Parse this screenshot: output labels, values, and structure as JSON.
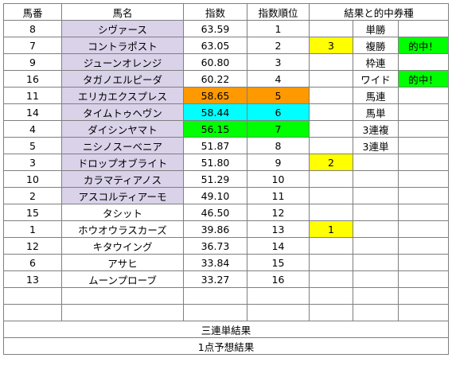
{
  "headers": [
    "馬番",
    "馬名",
    "指数",
    "指数順位",
    "結果と的中券種"
  ],
  "rows": [
    {
      "num": "8",
      "name": "シヴァース",
      "index": "63.59",
      "rank": "1",
      "res": "",
      "ticket": "単勝",
      "hit": "",
      "nameHL": "lav",
      "idxHL": "",
      "rankHL": "",
      "resHL": "",
      "hitHL": ""
    },
    {
      "num": "7",
      "name": "コントラポスト",
      "index": "63.05",
      "rank": "2",
      "res": "3",
      "ticket": "複勝",
      "hit": "的中！",
      "nameHL": "lav",
      "idxHL": "",
      "rankHL": "",
      "resHL": "yellow",
      "hitHL": "green"
    },
    {
      "num": "9",
      "name": "ジューンオレンジ",
      "index": "60.80",
      "rank": "3",
      "res": "",
      "ticket": "枠連",
      "hit": "",
      "nameHL": "lav",
      "idxHL": "",
      "rankHL": "",
      "resHL": "",
      "hitHL": ""
    },
    {
      "num": "16",
      "name": "タガノエルピーダ",
      "index": "60.22",
      "rank": "4",
      "res": "",
      "ticket": "ワイド",
      "hit": "的中！",
      "nameHL": "lav",
      "idxHL": "",
      "rankHL": "",
      "resHL": "",
      "hitHL": "green"
    },
    {
      "num": "11",
      "name": "エリカエクスプレス",
      "index": "58.65",
      "rank": "5",
      "res": "",
      "ticket": "馬連",
      "hit": "",
      "nameHL": "lav",
      "idxHL": "orange",
      "rankHL": "orange",
      "resHL": "",
      "hitHL": ""
    },
    {
      "num": "14",
      "name": "タイムトゥヘヴン",
      "index": "58.44",
      "rank": "6",
      "res": "",
      "ticket": "馬単",
      "hit": "",
      "nameHL": "lav",
      "idxHL": "cyan",
      "rankHL": "cyan",
      "resHL": "",
      "hitHL": ""
    },
    {
      "num": "4",
      "name": "ダイシンヤマト",
      "index": "56.15",
      "rank": "7",
      "res": "",
      "ticket": "3連複",
      "hit": "",
      "nameHL": "lav",
      "idxHL": "green",
      "rankHL": "green",
      "resHL": "",
      "hitHL": ""
    },
    {
      "num": "5",
      "name": "ニシノスーベニア",
      "index": "51.87",
      "rank": "8",
      "res": "",
      "ticket": "3連単",
      "hit": "",
      "nameHL": "lav",
      "idxHL": "",
      "rankHL": "",
      "resHL": "",
      "hitHL": ""
    },
    {
      "num": "3",
      "name": "ドロップオブライト",
      "index": "51.80",
      "rank": "9",
      "res": "2",
      "ticket": "",
      "hit": "",
      "nameHL": "lav",
      "idxHL": "",
      "rankHL": "",
      "resHL": "yellow",
      "hitHL": ""
    },
    {
      "num": "10",
      "name": "カラマティアノス",
      "index": "51.29",
      "rank": "10",
      "res": "",
      "ticket": "",
      "hit": "",
      "nameHL": "lav",
      "idxHL": "",
      "rankHL": "",
      "resHL": "",
      "hitHL": ""
    },
    {
      "num": "2",
      "name": "アスコルティアーモ",
      "index": "49.10",
      "rank": "11",
      "res": "",
      "ticket": "",
      "hit": "",
      "nameHL": "lav",
      "idxHL": "",
      "rankHL": "",
      "resHL": "",
      "hitHL": ""
    },
    {
      "num": "15",
      "name": "タシット",
      "index": "46.50",
      "rank": "12",
      "res": "",
      "ticket": "",
      "hit": "",
      "nameHL": "",
      "idxHL": "",
      "rankHL": "",
      "resHL": "",
      "hitHL": ""
    },
    {
      "num": "1",
      "name": "ホウオウラスカーズ",
      "index": "39.86",
      "rank": "13",
      "res": "1",
      "ticket": "",
      "hit": "",
      "nameHL": "",
      "idxHL": "",
      "rankHL": "",
      "resHL": "yellow",
      "hitHL": ""
    },
    {
      "num": "12",
      "name": "キタウイング",
      "index": "36.73",
      "rank": "14",
      "res": "",
      "ticket": "",
      "hit": "",
      "nameHL": "",
      "idxHL": "",
      "rankHL": "",
      "resHL": "",
      "hitHL": ""
    },
    {
      "num": "6",
      "name": "アサヒ",
      "index": "33.84",
      "rank": "15",
      "res": "",
      "ticket": "",
      "hit": "",
      "nameHL": "",
      "idxHL": "",
      "rankHL": "",
      "resHL": "",
      "hitHL": ""
    },
    {
      "num": "13",
      "name": "ムーンプローブ",
      "index": "33.27",
      "rank": "16",
      "res": "",
      "ticket": "",
      "hit": "",
      "nameHL": "",
      "idxHL": "",
      "rankHL": "",
      "resHL": "",
      "hitHL": ""
    },
    {
      "num": "",
      "name": "",
      "index": "",
      "rank": "",
      "res": "",
      "ticket": "",
      "hit": "",
      "nameHL": "",
      "idxHL": "",
      "rankHL": "",
      "resHL": "",
      "hitHL": ""
    },
    {
      "num": "",
      "name": "",
      "index": "",
      "rank": "",
      "res": "",
      "ticket": "",
      "hit": "",
      "nameHL": "",
      "idxHL": "",
      "rankHL": "",
      "resHL": "",
      "hitHL": ""
    }
  ],
  "footer": {
    "trifecta_label": "三連単結果",
    "single_pick_label": "1点予想結果"
  },
  "colors": {
    "lav": "#d9d2e9",
    "orange": "#ff9900",
    "cyan": "#00ffff",
    "green": "#00ff00",
    "yellow": "#ffff00"
  }
}
